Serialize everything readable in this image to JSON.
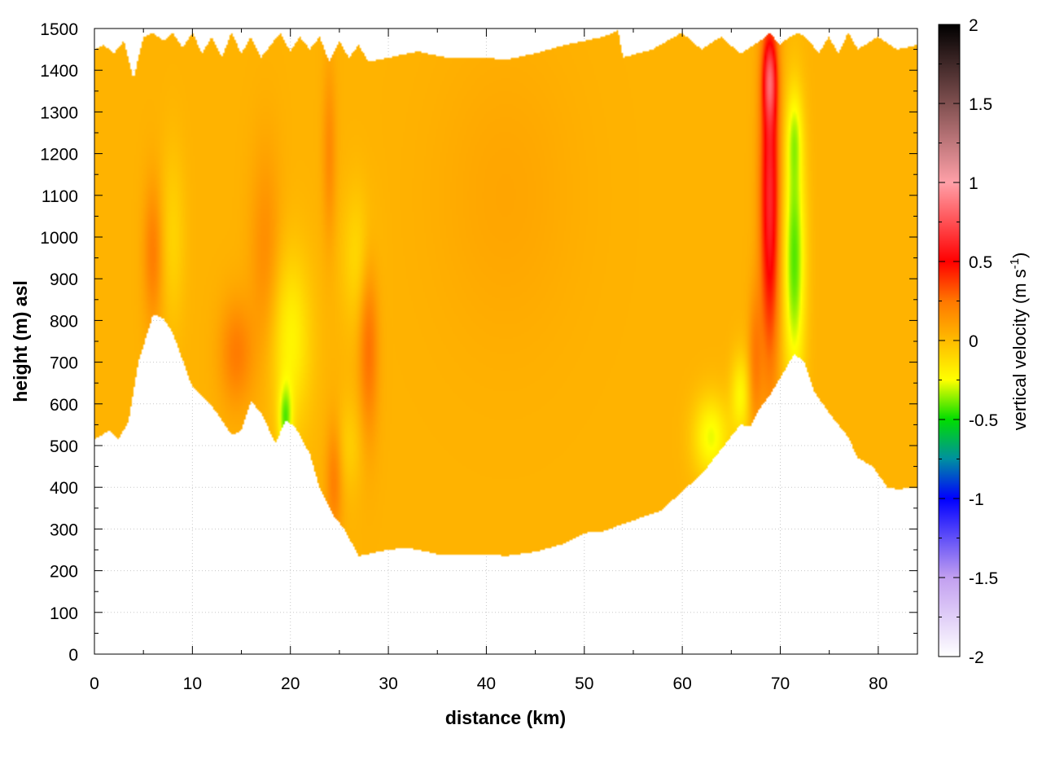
{
  "chart_data": {
    "type": "heatmap",
    "title": "",
    "xlabel": "distance (km)",
    "ylabel": "height (m) asl",
    "xlim": [
      0,
      84
    ],
    "ylim": [
      0,
      1500
    ],
    "x_ticks": [
      0,
      10,
      20,
      30,
      40,
      50,
      60,
      70,
      80
    ],
    "y_ticks": [
      0,
      100,
      200,
      300,
      400,
      500,
      600,
      700,
      800,
      900,
      1000,
      1100,
      1200,
      1300,
      1400,
      1500
    ],
    "grid": true,
    "colorbar": {
      "label_main": "vertical velocity (m s",
      "label_sup": "-1",
      "label_end": ")",
      "range": [
        -2,
        2
      ],
      "ticks": [
        "2",
        "1.5",
        "1",
        "0.5",
        "0",
        "-0.5",
        "-1",
        "-1.5",
        "-2"
      ],
      "tick_values": [
        2,
        1.5,
        1,
        0.5,
        0,
        -0.5,
        -1,
        -1.5,
        -2
      ],
      "color_stops": [
        {
          "value": -2.0,
          "color": "#ffffff"
        },
        {
          "value": -1.5,
          "color": "#c29ff0"
        },
        {
          "value": -1.0,
          "color": "#0000ff"
        },
        {
          "value": -0.75,
          "color": "#0090a0"
        },
        {
          "value": -0.5,
          "color": "#00dd00"
        },
        {
          "value": -0.25,
          "color": "#ffff00"
        },
        {
          "value": 0.0,
          "color": "#ffbb00"
        },
        {
          "value": 0.25,
          "color": "#ff7700"
        },
        {
          "value": 0.5,
          "color": "#ff0000"
        },
        {
          "value": 1.0,
          "color": "#ffa0a8"
        },
        {
          "value": 1.5,
          "color": "#805050"
        },
        {
          "value": 2.0,
          "color": "#000000"
        }
      ]
    },
    "background_velocity": 0.03,
    "terrain_bottom": [
      {
        "x": 0,
        "y": 515
      },
      {
        "x": 1.5,
        "y": 535
      },
      {
        "x": 2.5,
        "y": 515
      },
      {
        "x": 3.5,
        "y": 560
      },
      {
        "x": 4.5,
        "y": 700
      },
      {
        "x": 6,
        "y": 815
      },
      {
        "x": 7,
        "y": 805
      },
      {
        "x": 8,
        "y": 770
      },
      {
        "x": 10,
        "y": 640
      },
      {
        "x": 11,
        "y": 620
      },
      {
        "x": 12.5,
        "y": 580
      },
      {
        "x": 14,
        "y": 525
      },
      {
        "x": 15,
        "y": 535
      },
      {
        "x": 16,
        "y": 605
      },
      {
        "x": 17,
        "y": 580
      },
      {
        "x": 18.5,
        "y": 505
      },
      {
        "x": 19.5,
        "y": 560
      },
      {
        "x": 20.5,
        "y": 545
      },
      {
        "x": 22,
        "y": 480
      },
      {
        "x": 23,
        "y": 400
      },
      {
        "x": 24.5,
        "y": 330
      },
      {
        "x": 25.5,
        "y": 300
      },
      {
        "x": 27,
        "y": 235
      },
      {
        "x": 28,
        "y": 240
      },
      {
        "x": 30,
        "y": 250
      },
      {
        "x": 32,
        "y": 255
      },
      {
        "x": 35,
        "y": 240
      },
      {
        "x": 40,
        "y": 240
      },
      {
        "x": 42,
        "y": 235
      },
      {
        "x": 45,
        "y": 245
      },
      {
        "x": 48,
        "y": 265
      },
      {
        "x": 50,
        "y": 290
      },
      {
        "x": 52,
        "y": 295
      },
      {
        "x": 55,
        "y": 320
      },
      {
        "x": 58,
        "y": 345
      },
      {
        "x": 60,
        "y": 390
      },
      {
        "x": 62,
        "y": 430
      },
      {
        "x": 64,
        "y": 490
      },
      {
        "x": 66,
        "y": 550
      },
      {
        "x": 67,
        "y": 545
      },
      {
        "x": 68,
        "y": 590
      },
      {
        "x": 69,
        "y": 620
      },
      {
        "x": 70.5,
        "y": 680
      },
      {
        "x": 71.5,
        "y": 720
      },
      {
        "x": 72.5,
        "y": 700
      },
      {
        "x": 73.5,
        "y": 630
      },
      {
        "x": 75,
        "y": 580
      },
      {
        "x": 77,
        "y": 520
      },
      {
        "x": 78,
        "y": 470
      },
      {
        "x": 79.5,
        "y": 450
      },
      {
        "x": 81,
        "y": 400
      },
      {
        "x": 82,
        "y": 395
      },
      {
        "x": 84,
        "y": 400
      }
    ],
    "top_boundary": [
      {
        "x": 0,
        "y": 1450
      },
      {
        "x": 1,
        "y": 1460
      },
      {
        "x": 2,
        "y": 1440
      },
      {
        "x": 3,
        "y": 1470
      },
      {
        "x": 4,
        "y": 1380
      },
      {
        "x": 5,
        "y": 1480
      },
      {
        "x": 6,
        "y": 1490
      },
      {
        "x": 7,
        "y": 1470
      },
      {
        "x": 8,
        "y": 1490
      },
      {
        "x": 9,
        "y": 1455
      },
      {
        "x": 10,
        "y": 1490
      },
      {
        "x": 11,
        "y": 1440
      },
      {
        "x": 12,
        "y": 1480
      },
      {
        "x": 13,
        "y": 1430
      },
      {
        "x": 14,
        "y": 1490
      },
      {
        "x": 15,
        "y": 1440
      },
      {
        "x": 16,
        "y": 1480
      },
      {
        "x": 17,
        "y": 1430
      },
      {
        "x": 18,
        "y": 1460
      },
      {
        "x": 19,
        "y": 1490
      },
      {
        "x": 20,
        "y": 1445
      },
      {
        "x": 21,
        "y": 1480
      },
      {
        "x": 22,
        "y": 1450
      },
      {
        "x": 23,
        "y": 1480
      },
      {
        "x": 24,
        "y": 1420
      },
      {
        "x": 25,
        "y": 1470
      },
      {
        "x": 26,
        "y": 1430
      },
      {
        "x": 27,
        "y": 1460
      },
      {
        "x": 28,
        "y": 1420
      },
      {
        "x": 30,
        "y": 1430
      },
      {
        "x": 33,
        "y": 1445
      },
      {
        "x": 36,
        "y": 1430
      },
      {
        "x": 40,
        "y": 1430
      },
      {
        "x": 42,
        "y": 1425
      },
      {
        "x": 45,
        "y": 1440
      },
      {
        "x": 48,
        "y": 1460
      },
      {
        "x": 52,
        "y": 1480
      },
      {
        "x": 53.5,
        "y": 1495
      },
      {
        "x": 54,
        "y": 1430
      },
      {
        "x": 57,
        "y": 1450
      },
      {
        "x": 60,
        "y": 1490
      },
      {
        "x": 62,
        "y": 1450
      },
      {
        "x": 64,
        "y": 1480
      },
      {
        "x": 66,
        "y": 1440
      },
      {
        "x": 68,
        "y": 1470
      },
      {
        "x": 69,
        "y": 1490
      },
      {
        "x": 70,
        "y": 1460
      },
      {
        "x": 71,
        "y": 1480
      },
      {
        "x": 72,
        "y": 1490
      },
      {
        "x": 73,
        "y": 1470
      },
      {
        "x": 74,
        "y": 1440
      },
      {
        "x": 75,
        "y": 1480
      },
      {
        "x": 76,
        "y": 1440
      },
      {
        "x": 77,
        "y": 1490
      },
      {
        "x": 78,
        "y": 1450
      },
      {
        "x": 80,
        "y": 1480
      },
      {
        "x": 82,
        "y": 1450
      },
      {
        "x": 84,
        "y": 1460
      }
    ],
    "anomalies": [
      {
        "x": 69,
        "y": 1100,
        "sx": 0.7,
        "sy": 280,
        "value": 0.6
      },
      {
        "x": 69,
        "y": 1380,
        "sx": 0.5,
        "sy": 70,
        "value": 0.45
      },
      {
        "x": 71.5,
        "y": 950,
        "sx": 0.8,
        "sy": 220,
        "value": -0.45
      },
      {
        "x": 71.5,
        "y": 1250,
        "sx": 0.6,
        "sy": 80,
        "value": -0.2
      },
      {
        "x": 6,
        "y": 960,
        "sx": 0.7,
        "sy": 120,
        "value": 0.2
      },
      {
        "x": 8,
        "y": 1000,
        "sx": 0.9,
        "sy": 150,
        "value": -0.12
      },
      {
        "x": 14.5,
        "y": 720,
        "sx": 1.2,
        "sy": 90,
        "value": 0.2
      },
      {
        "x": 17.5,
        "y": 950,
        "sx": 1.1,
        "sy": 180,
        "value": 0.15
      },
      {
        "x": 20,
        "y": 750,
        "sx": 1.5,
        "sy": 150,
        "value": -0.25
      },
      {
        "x": 19.5,
        "y": 560,
        "sx": 0.5,
        "sy": 60,
        "value": -0.35
      },
      {
        "x": 24,
        "y": 1200,
        "sx": 0.5,
        "sy": 150,
        "value": 0.15
      },
      {
        "x": 24.5,
        "y": 420,
        "sx": 0.6,
        "sy": 100,
        "value": 0.2
      },
      {
        "x": 28,
        "y": 750,
        "sx": 0.7,
        "sy": 160,
        "value": 0.25
      },
      {
        "x": 27,
        "y": 950,
        "sx": 1.2,
        "sy": 120,
        "value": -0.15
      },
      {
        "x": 26,
        "y": 500,
        "sx": 1.0,
        "sy": 80,
        "value": -0.1
      },
      {
        "x": 42,
        "y": 1100,
        "sx": 5,
        "sy": 250,
        "value": 0.05
      },
      {
        "x": 63,
        "y": 520,
        "sx": 1.3,
        "sy": 70,
        "value": -0.3
      },
      {
        "x": 66,
        "y": 620,
        "sx": 0.7,
        "sy": 70,
        "value": -0.25
      },
      {
        "x": 67.5,
        "y": 700,
        "sx": 0.5,
        "sy": 120,
        "value": 0.2
      }
    ]
  }
}
